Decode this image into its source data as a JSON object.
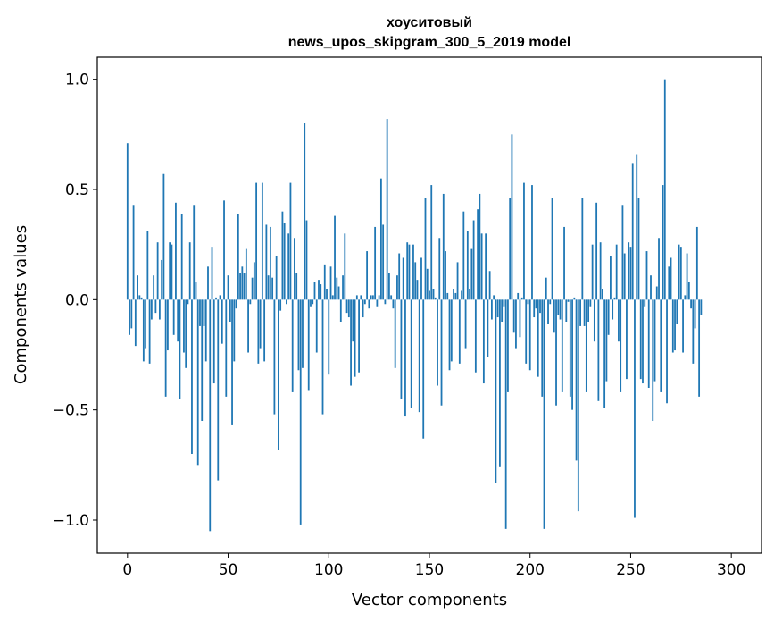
{
  "chart_data": {
    "type": "bar",
    "title": [
      "хоуситовый",
      "news_upos_skipgram_300_5_2019 model"
    ],
    "xlabel": "Vector components",
    "ylabel": "Components values",
    "xlim": [
      -15,
      315
    ],
    "ylim": [
      -1.15,
      1.1
    ],
    "xticks": [
      0,
      50,
      100,
      150,
      200,
      250,
      300
    ],
    "yticks": [
      -1.0,
      -0.5,
      0.0,
      0.5,
      1.0
    ],
    "xtick_labels": [
      "0",
      "50",
      "100",
      "150",
      "200",
      "250",
      "300"
    ],
    "ytick_labels": [
      "−1.0",
      "−0.5",
      "0.0",
      "0.5",
      "1.0"
    ],
    "bar_color": "#1f77b4",
    "grid": false,
    "legend": "none",
    "values": [
      0.71,
      -0.16,
      -0.13,
      0.43,
      -0.21,
      0.11,
      0.02,
      0.01,
      -0.28,
      -0.22,
      0.31,
      -0.29,
      -0.09,
      0.11,
      -0.06,
      0.26,
      -0.09,
      0.18,
      0.57,
      -0.44,
      -0.23,
      0.26,
      0.25,
      -0.16,
      0.44,
      -0.19,
      -0.45,
      0.39,
      -0.24,
      -0.31,
      -0.02,
      0.26,
      -0.7,
      0.43,
      0.08,
      -0.75,
      -0.12,
      -0.55,
      -0.12,
      -0.28,
      0.15,
      -1.05,
      0.24,
      -0.38,
      0.01,
      -0.82,
      0.02,
      -0.2,
      0.45,
      -0.44,
      0.11,
      -0.1,
      -0.57,
      -0.28,
      -0.04,
      0.39,
      0.12,
      0.15,
      0.12,
      0.23,
      -0.24,
      -0.02,
      0.1,
      0.17,
      0.53,
      -0.29,
      -0.22,
      0.53,
      -0.28,
      0.34,
      0.11,
      0.33,
      0.1,
      -0.52,
      0.2,
      -0.68,
      -0.05,
      0.4,
      0.35,
      -0.02,
      0.3,
      0.53,
      -0.42,
      0.28,
      0.12,
      -0.32,
      -1.02,
      -0.31,
      0.8,
      0.36,
      -0.41,
      -0.03,
      -0.02,
      0.08,
      -0.24,
      0.09,
      0.07,
      -0.52,
      0.16,
      0.05,
      -0.34,
      0.15,
      0.02,
      0.38,
      0.1,
      0.06,
      -0.1,
      0.11,
      0.3,
      -0.06,
      -0.08,
      -0.39,
      -0.19,
      -0.35,
      0.02,
      -0.33,
      0.02,
      -0.08,
      -0.02,
      0.22,
      -0.04,
      0.02,
      0.02,
      0.33,
      -0.03,
      0.02,
      0.55,
      0.34,
      -0.02,
      0.82,
      0.12,
      0.02,
      -0.04,
      -0.31,
      0.11,
      0.21,
      -0.45,
      0.19,
      -0.53,
      0.26,
      0.25,
      -0.49,
      0.25,
      0.17,
      0.09,
      -0.51,
      0.19,
      -0.63,
      0.46,
      0.14,
      0.04,
      0.52,
      0.05,
      0.01,
      -0.39,
      0.28,
      -0.48,
      0.48,
      0.22,
      0.03,
      -0.32,
      -0.28,
      0.05,
      0.03,
      0.17,
      -0.29,
      0.04,
      0.4,
      -0.22,
      0.31,
      0.05,
      0.23,
      0.36,
      -0.33,
      0.41,
      0.48,
      0.3,
      -0.38,
      0.3,
      -0.26,
      0.13,
      -0.09,
      0.02,
      -0.83,
      -0.08,
      -0.76,
      -0.1,
      -0.03,
      -1.04,
      -0.42,
      0.46,
      0.75,
      -0.15,
      -0.22,
      0.03,
      -0.17,
      0.01,
      0.53,
      -0.29,
      -0.02,
      -0.32,
      0.52,
      -0.08,
      -0.04,
      -0.35,
      -0.06,
      -0.44,
      -1.04,
      0.1,
      -0.11,
      -0.02,
      0.46,
      -0.15,
      -0.48,
      -0.07,
      -0.09,
      -0.42,
      0.33,
      -0.1,
      -0.01,
      -0.44,
      -0.5,
      0.01,
      -0.73,
      -0.96,
      -0.12,
      0.46,
      -0.12,
      -0.42,
      -0.1,
      -0.03,
      0.25,
      -0.19,
      0.44,
      -0.46,
      0.26,
      0.05,
      -0.49,
      -0.37,
      -0.16,
      0.2,
      -0.09,
      0.01,
      0.25,
      -0.19,
      -0.42,
      0.43,
      0.21,
      -0.36,
      0.26,
      0.24,
      0.62,
      -0.99,
      0.66,
      0.46,
      -0.36,
      -0.38,
      -0.03,
      0.22,
      -0.4,
      0.11,
      -0.55,
      -0.37,
      0.06,
      0.28,
      -0.42,
      0.52,
      1.0,
      -0.47,
      0.15,
      0.19,
      -0.24,
      -0.23,
      -0.11,
      0.25,
      0.24,
      -0.24,
      0.02,
      0.21,
      0.08,
      -0.04,
      -0.29,
      -0.13,
      0.33,
      -0.44,
      -0.07
    ]
  }
}
